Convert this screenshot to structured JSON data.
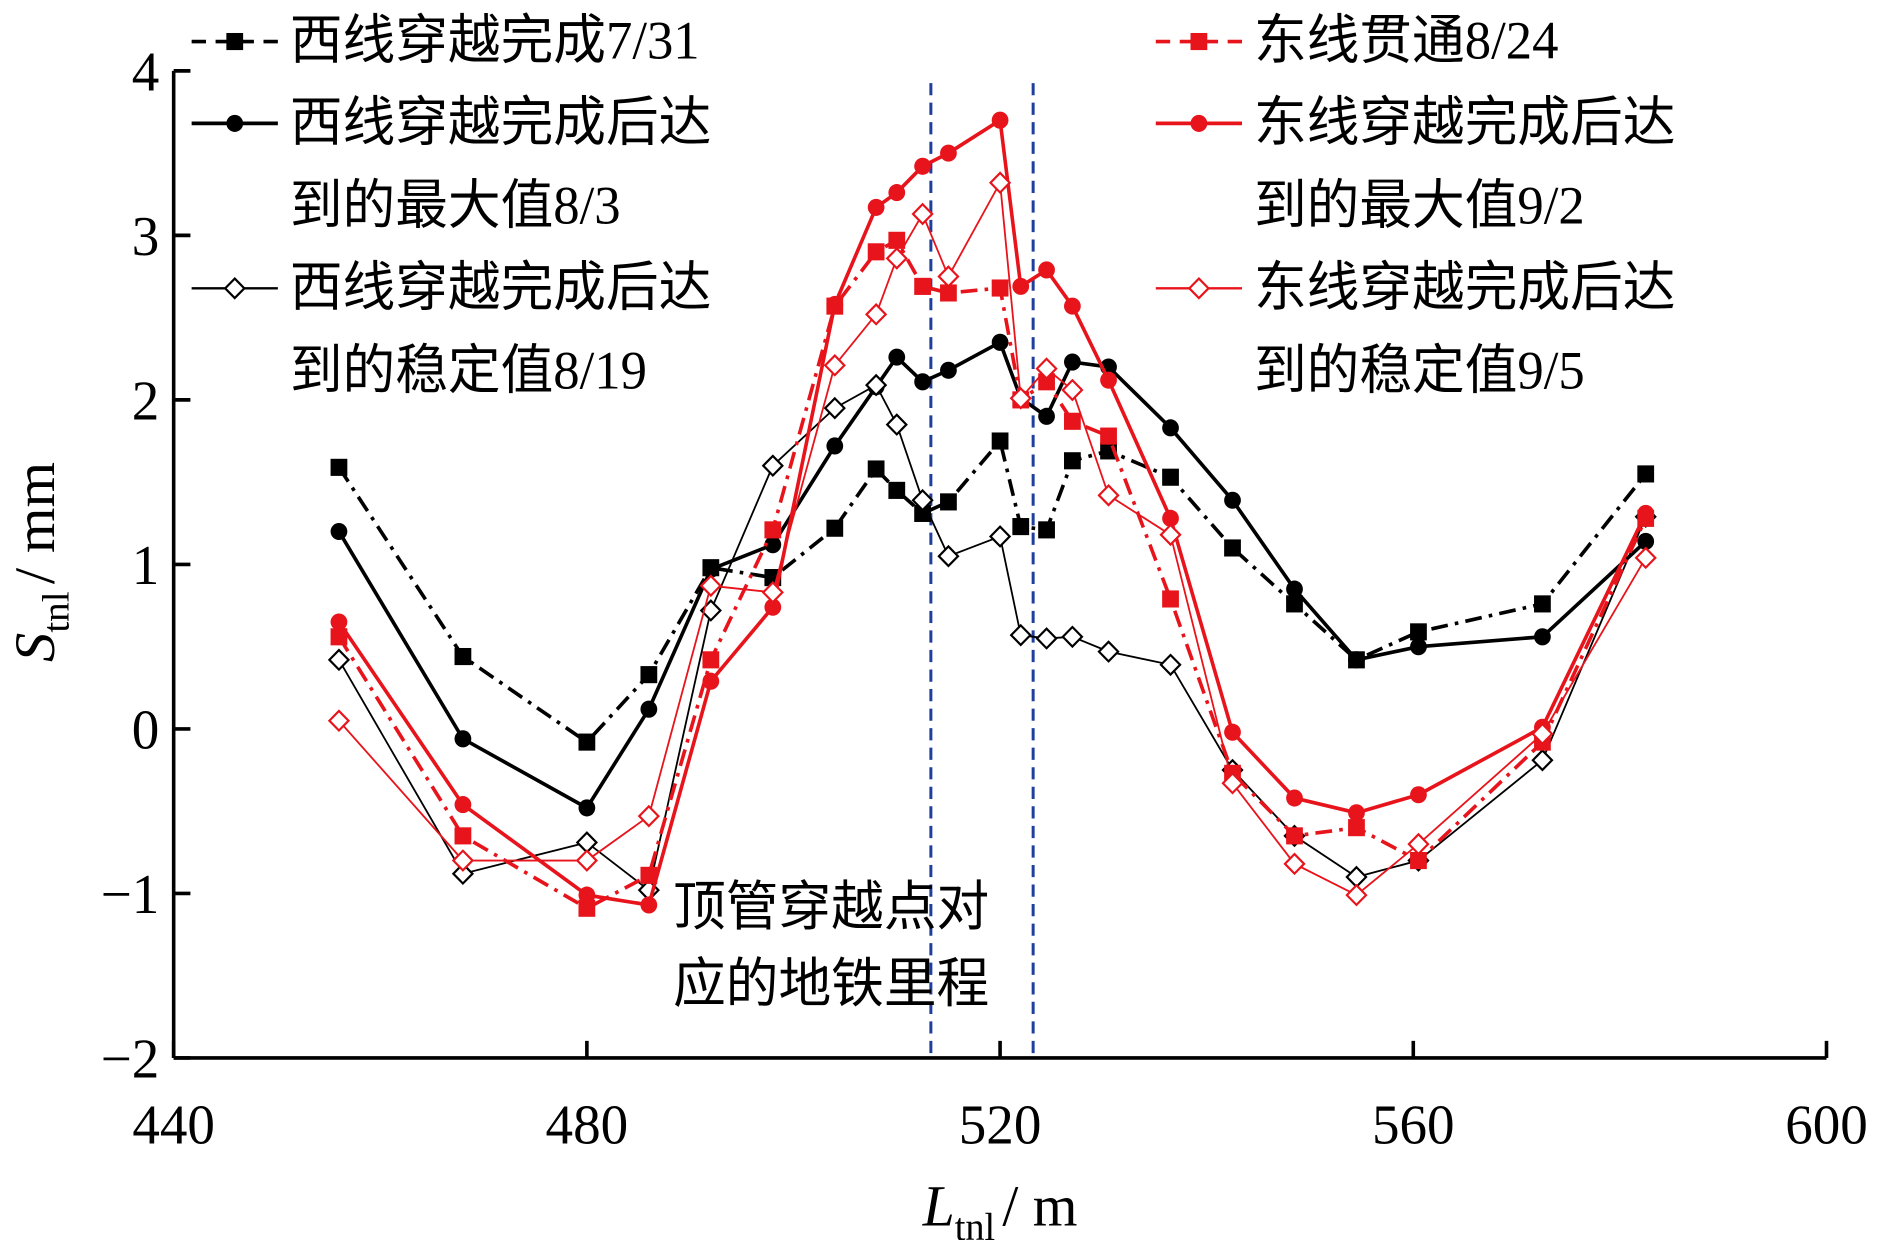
{
  "chart_data": {
    "type": "line",
    "xlabel": {
      "main": "L",
      "sub": "tnl",
      "unit": "/ m"
    },
    "ylabel": {
      "main": "S",
      "sub": "tnl",
      "unit": "/ mm"
    },
    "xlim": [
      440,
      600
    ],
    "ylim": [
      -2,
      4
    ],
    "xticks": [
      "440",
      "480",
      "520",
      "560",
      "600"
    ],
    "yticks": [
      "−2",
      "−1",
      "0",
      "1",
      "2",
      "3",
      "4"
    ],
    "grid": false,
    "legend_placement": "top",
    "x": [
      456,
      468,
      480,
      486,
      492,
      498,
      504,
      508,
      510,
      512.5,
      515,
      520,
      522,
      524.5,
      527,
      530.5,
      536.5,
      542.5,
      548.5,
      554.5,
      560.5,
      572.5,
      582.5
    ],
    "series": [
      {
        "name_lines": [
          "西线穿越完成7/31"
        ],
        "color": "#000000",
        "marker": "square",
        "line": "dashdot",
        "width": "normal",
        "values": [
          1.59,
          0.44,
          -0.08,
          0.33,
          0.98,
          0.92,
          1.22,
          1.58,
          1.45,
          1.31,
          1.38,
          1.75,
          1.23,
          1.21,
          1.63,
          1.69,
          1.53,
          1.1,
          0.76,
          0.42,
          0.59,
          0.76,
          1.55
        ]
      },
      {
        "name_lines": [
          "西线穿越完成后达",
          "到的最大值8/3"
        ],
        "color": "#000000",
        "marker": "circle",
        "line": "solid",
        "width": "normal",
        "values": [
          1.2,
          -0.06,
          -0.48,
          0.12,
          0.97,
          1.12,
          1.72,
          2.08,
          2.26,
          2.11,
          2.18,
          2.35,
          2.01,
          1.9,
          2.23,
          2.2,
          1.83,
          1.39,
          0.85,
          0.42,
          0.5,
          0.56,
          1.14
        ]
      },
      {
        "name_lines": [
          "西线穿越完成后达",
          "到的稳定值8/19"
        ],
        "color": "#000000",
        "marker": "diamond",
        "line": "solid",
        "width": "thin",
        "values": [
          0.42,
          -0.88,
          -0.69,
          -0.98,
          0.72,
          1.6,
          1.95,
          2.09,
          1.85,
          1.39,
          1.05,
          1.17,
          0.57,
          0.55,
          0.56,
          0.47,
          0.39,
          -0.25,
          -0.65,
          -0.9,
          -0.8,
          -0.19,
          1.29
        ]
      },
      {
        "name_lines": [
          "东线贯通8/24"
        ],
        "color": "#e8141c",
        "marker": "square",
        "line": "dashdot",
        "width": "normal",
        "values": [
          0.56,
          -0.65,
          -1.09,
          -0.89,
          0.42,
          1.21,
          2.57,
          2.9,
          2.97,
          2.69,
          2.65,
          2.68,
          2.0,
          2.11,
          1.87,
          1.78,
          0.79,
          -0.27,
          -0.65,
          -0.6,
          -0.8,
          -0.08,
          1.28
        ]
      },
      {
        "name_lines": [
          "东线穿越完成后达",
          "到的最大值9/2"
        ],
        "color": "#e8141c",
        "marker": "circle",
        "line": "solid",
        "width": "normal",
        "values": [
          0.65,
          -0.46,
          -1.01,
          -1.07,
          0.29,
          0.74,
          2.58,
          3.17,
          3.26,
          3.42,
          3.5,
          3.7,
          2.69,
          2.79,
          2.57,
          2.12,
          1.28,
          -0.02,
          -0.42,
          -0.51,
          -0.4,
          0.01,
          1.31
        ]
      },
      {
        "name_lines": [
          "东线穿越完成后达",
          "到的稳定值9/5"
        ],
        "color": "#e8141c",
        "marker": "diamond",
        "line": "solid",
        "width": "thin",
        "values": [
          0.05,
          -0.8,
          -0.8,
          -0.53,
          0.87,
          0.83,
          2.21,
          2.52,
          2.86,
          3.13,
          2.75,
          3.32,
          2.01,
          2.19,
          2.06,
          1.42,
          1.18,
          -0.33,
          -0.82,
          -1.01,
          -0.7,
          -0.03,
          1.04
        ]
      }
    ],
    "reference_lines": {
      "x": [
        513.3,
        523.2
      ],
      "color": "#1f3f9f",
      "style": "dashed"
    },
    "annotation": {
      "lines": [
        "顶管穿越点对",
        "应的地铁里程"
      ]
    }
  }
}
